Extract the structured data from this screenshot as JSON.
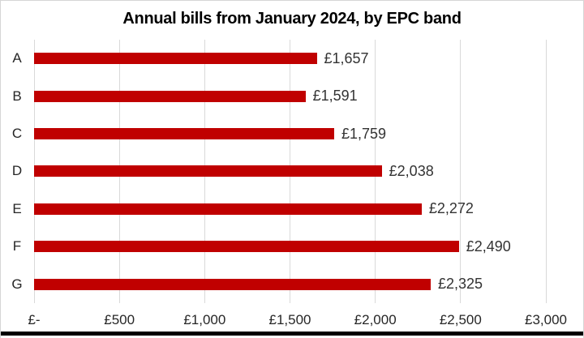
{
  "title": "Annual bills from January 2024, by EPC band",
  "colors": {
    "bar": "#C00000",
    "gridline": "#D9D9D9",
    "title_text": "#000000",
    "label_text": "#262626",
    "bottom_rule": "#000000"
  },
  "chart_data": {
    "type": "bar",
    "orientation": "horizontal",
    "title": "Annual bills from January 2024, by EPC band",
    "xlabel": "",
    "ylabel": "",
    "categories": [
      "A",
      "B",
      "C",
      "D",
      "E",
      "F",
      "G"
    ],
    "values": [
      1657,
      1591,
      1759,
      2038,
      2272,
      2490,
      2325
    ],
    "value_labels": [
      "£1,657",
      "£1,591",
      "£1,759",
      "£2,038",
      "£2,272",
      "£2,490",
      "£2,325"
    ],
    "xlim": [
      0,
      3000
    ],
    "x_ticks": [
      0,
      500,
      1000,
      1500,
      2000,
      2500,
      3000
    ],
    "x_tick_labels": [
      "£-",
      "£500",
      "£1,000",
      "£1,500",
      "£2,000",
      "£2,500",
      "£3,000"
    ],
    "grid": "vertical-gridlines-on",
    "legend": "none",
    "bar_color": "#C00000",
    "gridline_color": "#D9D9D9"
  }
}
